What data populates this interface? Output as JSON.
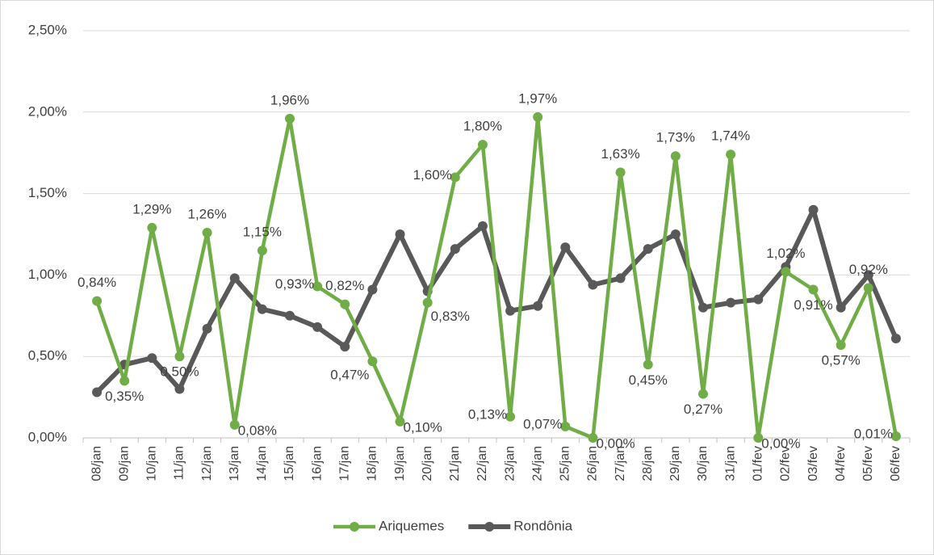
{
  "chart_data": {
    "type": "line",
    "categories": [
      "08/jan",
      "09/jan",
      "10/jan",
      "11/jan",
      "12/jan",
      "13/jan",
      "14/jan",
      "15/jan",
      "16/jan",
      "17/jan",
      "18/jan",
      "19/jan",
      "20/jan",
      "21/jan",
      "22/jan",
      "23/jan",
      "24/jan",
      "25/jan",
      "26/jan",
      "27/jan",
      "28/jan",
      "29/jan",
      "30/jan",
      "31/jan",
      "01/fev",
      "02/fev",
      "03/fev",
      "04/fev",
      "05/fev",
      "06/fev"
    ],
    "series": [
      {
        "name": "Ariquemes",
        "color": "#70ad47",
        "values": [
          0.84,
          0.35,
          1.29,
          0.5,
          1.26,
          0.08,
          1.15,
          1.96,
          0.93,
          0.82,
          0.47,
          0.1,
          0.83,
          1.6,
          1.8,
          0.13,
          1.97,
          0.07,
          0.0,
          1.63,
          0.45,
          1.73,
          0.27,
          1.74,
          0.0,
          1.02,
          0.91,
          0.57,
          0.92,
          0.01
        ],
        "value_labels": [
          "0,84%",
          "0,35%",
          "1,29%",
          "0,50%",
          "1,26%",
          "0,08%",
          "1,15%",
          "1,96%",
          "0,93%",
          "0,82%",
          "0,47%",
          "0,10%",
          "0,83%",
          "1,60%",
          "1,80%",
          "0,13%",
          "1,97%",
          "0,07%",
          "0,00%",
          "1,63%",
          "0,45%",
          "1,73%",
          "0,27%",
          "1,74%",
          "0,00%",
          "1,02%",
          "0,91%",
          "0,57%",
          "0,92%",
          "0,01%"
        ]
      },
      {
        "name": "Rondônia",
        "color": "#595959",
        "values": [
          0.28,
          0.45,
          0.49,
          0.3,
          0.67,
          0.98,
          0.79,
          0.75,
          0.68,
          0.56,
          0.91,
          1.25,
          0.9,
          1.16,
          1.3,
          0.78,
          0.81,
          1.17,
          0.94,
          0.98,
          1.16,
          1.25,
          0.8,
          0.83,
          0.85,
          1.05,
          1.4,
          0.8,
          1.0,
          0.61
        ]
      }
    ],
    "ylim": [
      0,
      2.5
    ],
    "yticks": [
      {
        "value": 0,
        "label": "0,00%"
      },
      {
        "value": 0.5,
        "label": "0,50%"
      },
      {
        "value": 1,
        "label": "1,00%"
      },
      {
        "value": 1.5,
        "label": "1,50%"
      },
      {
        "value": 2,
        "label": "2,00%"
      },
      {
        "value": 2.5,
        "label": "2,50%"
      }
    ],
    "grid": true,
    "legend": "bottom"
  }
}
